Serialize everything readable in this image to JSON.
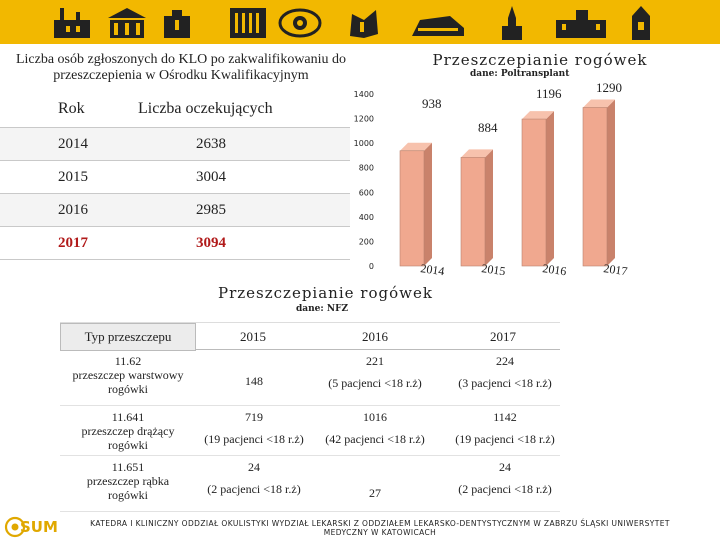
{
  "left_title": "Liczba osób zgłoszonych do KLO po zakwalifikowaniu do przeszczepienia w Ośrodku Kwalifikacyjnym",
  "waiting_table": {
    "headers": [
      "Rok",
      "Liczba oczekujących"
    ],
    "rows": [
      {
        "year": "2014",
        "count": "2638"
      },
      {
        "year": "2015",
        "count": "3004"
      },
      {
        "year": "2016",
        "count": "2985"
      },
      {
        "year": "2017",
        "count": "3094"
      }
    ]
  },
  "chart_data": {
    "type": "bar",
    "title": "Przeszczepianie rogówek",
    "subtitle": "dane: Poltransplant",
    "categories": [
      "2014",
      "2015",
      "2016",
      "2017"
    ],
    "values": [
      938,
      884,
      1196,
      1290
    ],
    "ylim": [
      0,
      1400
    ],
    "yticks": [
      "0",
      "200",
      "400",
      "600",
      "800",
      "1000",
      "1200",
      "1400"
    ],
    "bar_color": "#f0a88f"
  },
  "nfz": {
    "title": "Przeszczepianie rogówek",
    "subtitle": "dane: NFZ",
    "headers": [
      "Typ przeszczepu",
      "2015",
      "2016",
      "2017"
    ],
    "rows": [
      {
        "type_lines": [
          "11.62",
          "przeszczep warstwowy",
          "rogówki"
        ],
        "v2015": [
          "148"
        ],
        "v2016": [
          "221",
          "(5 pacjenci <18 r.ż)"
        ],
        "v2017": [
          "224",
          "(3 pacjenci <18 r.ż)"
        ]
      },
      {
        "type_lines": [
          "11.641",
          "przeszczep drążący",
          "rogówki"
        ],
        "v2015": [
          "719",
          "(19 pacjenci <18 r.ż)"
        ],
        "v2016": [
          "1016",
          "(42 pacjenci <18 r.ż)"
        ],
        "v2017": [
          "1142",
          "(19 pacjenci <18 r.ż)"
        ]
      },
      {
        "type_lines": [
          "11.651",
          "przeszczep rąbka",
          "rogówki"
        ],
        "v2015": [
          "24",
          "(2 pacjenci <18 r.ż)"
        ],
        "v2016": [
          "27"
        ],
        "v2017": [
          "24",
          "(2 pacjenci <18 r.ż)"
        ]
      }
    ]
  },
  "footer": {
    "institution_line1": "KATEDRA I KLINICZNY ODDZIAŁ OKULISTYKI WYDZIAŁ LEKARSKI Z ODDZIAŁEM LEKARSKO-DENTYSTYCZNYM W ZABRZU ŚLĄSKI UNIWERSYTET",
    "institution_line2": "MEDYCZNY W KATOWICACH",
    "logo_text": "SUM"
  },
  "colors": {
    "banner": "#f2b800",
    "highlight_row": "#b11a1a",
    "logo": "#e0a800"
  },
  "banner_icons": [
    "factory-icon",
    "university-icon",
    "building-icon",
    "columns-icon",
    "eye-icon",
    "book-icon",
    "monument-icon",
    "church-icon",
    "palace-icon",
    "tower-icon"
  ]
}
